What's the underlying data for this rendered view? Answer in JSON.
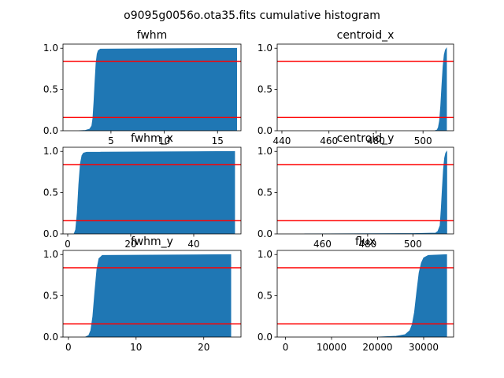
{
  "figure": {
    "title": "o9095g0056o.ota35.fits cumulative histogram"
  },
  "chart_data": [
    {
      "type": "area",
      "title": "fwhm",
      "xlim": [
        0.5,
        17.2
      ],
      "ylim": [
        0,
        1.05
      ],
      "xticks": [
        5,
        10,
        15
      ],
      "yticks": [
        0.0,
        0.5,
        1.0
      ],
      "x": [
        2.0,
        2.6,
        3.0,
        3.2,
        3.3,
        3.4,
        3.5,
        3.6,
        3.7,
        3.8,
        4.0,
        16.8
      ],
      "y": [
        0.0,
        0.005,
        0.02,
        0.06,
        0.15,
        0.35,
        0.6,
        0.82,
        0.93,
        0.97,
        0.99,
        1.0
      ],
      "hlines": [
        0.16,
        0.84
      ],
      "color": "#1f77b4",
      "hline_color": "#ff0000"
    },
    {
      "type": "area",
      "title": "centroid_x",
      "xlim": [
        438,
        513
      ],
      "ylim": [
        0,
        1.05
      ],
      "xticks": [
        440,
        460,
        480,
        500
      ],
      "yticks": [
        0.0,
        0.5,
        1.0
      ],
      "x": [
        505,
        506,
        506.5,
        507,
        507.5,
        508,
        508.5,
        509,
        509.5,
        510
      ],
      "y": [
        0.0,
        0.01,
        0.04,
        0.12,
        0.3,
        0.55,
        0.78,
        0.92,
        0.98,
        1.0
      ],
      "hlines": [
        0.16,
        0.84
      ],
      "color": "#1f77b4",
      "hline_color": "#ff0000"
    },
    {
      "type": "area",
      "title": "fwhm_x",
      "xlim": [
        -1.5,
        55
      ],
      "ylim": [
        0,
        1.05
      ],
      "xticks": [
        0,
        20,
        40
      ],
      "yticks": [
        0.0,
        0.5,
        1.0
      ],
      "x": [
        2.0,
        2.5,
        3.0,
        3.5,
        4.0,
        4.5,
        5.0,
        6.0,
        53
      ],
      "y": [
        0.0,
        0.05,
        0.25,
        0.6,
        0.85,
        0.95,
        0.98,
        0.99,
        1.0
      ],
      "hlines": [
        0.16,
        0.84
      ],
      "color": "#1f77b4",
      "hline_color": "#ff0000"
    },
    {
      "type": "area",
      "title": "centroid_y",
      "xlim": [
        440,
        518
      ],
      "ylim": [
        0,
        1.05
      ],
      "xticks": [
        460,
        480,
        500
      ],
      "yticks": [
        0.0,
        0.5,
        1.0
      ],
      "x": [
        452,
        500,
        510,
        511,
        512,
        512.5,
        513,
        513.5,
        514,
        514.5,
        515
      ],
      "y": [
        0.0,
        0.005,
        0.01,
        0.03,
        0.1,
        0.3,
        0.55,
        0.78,
        0.92,
        0.98,
        1.0
      ],
      "hlines": [
        0.16,
        0.84
      ],
      "color": "#1f77b4",
      "hline_color": "#ff0000"
    },
    {
      "type": "area",
      "title": "fwhm_y",
      "xlim": [
        -0.8,
        25.5
      ],
      "ylim": [
        0,
        1.05
      ],
      "xticks": [
        0,
        10,
        20
      ],
      "yticks": [
        0.0,
        0.5,
        1.0
      ],
      "x": [
        2.5,
        3.0,
        3.3,
        3.6,
        3.9,
        4.2,
        4.5,
        5.0,
        24
      ],
      "y": [
        0.0,
        0.02,
        0.08,
        0.25,
        0.55,
        0.82,
        0.95,
        0.99,
        1.0
      ],
      "hlines": [
        0.16,
        0.84
      ],
      "color": "#1f77b4",
      "hline_color": "#ff0000"
    },
    {
      "type": "area",
      "title": "flux",
      "xlim": [
        -1800,
        36500
      ],
      "ylim": [
        0,
        1.05
      ],
      "xticks": [
        0,
        10000,
        20000,
        30000
      ],
      "yticks": [
        0.0,
        0.5,
        1.0
      ],
      "x": [
        20000,
        24000,
        26000,
        27000,
        27500,
        28000,
        28500,
        29000,
        29500,
        30000,
        31000,
        35000
      ],
      "y": [
        0.0,
        0.01,
        0.03,
        0.08,
        0.15,
        0.3,
        0.55,
        0.78,
        0.9,
        0.96,
        0.99,
        1.0
      ],
      "hlines": [
        0.16,
        0.84
      ],
      "color": "#1f77b4",
      "hline_color": "#ff0000"
    }
  ]
}
